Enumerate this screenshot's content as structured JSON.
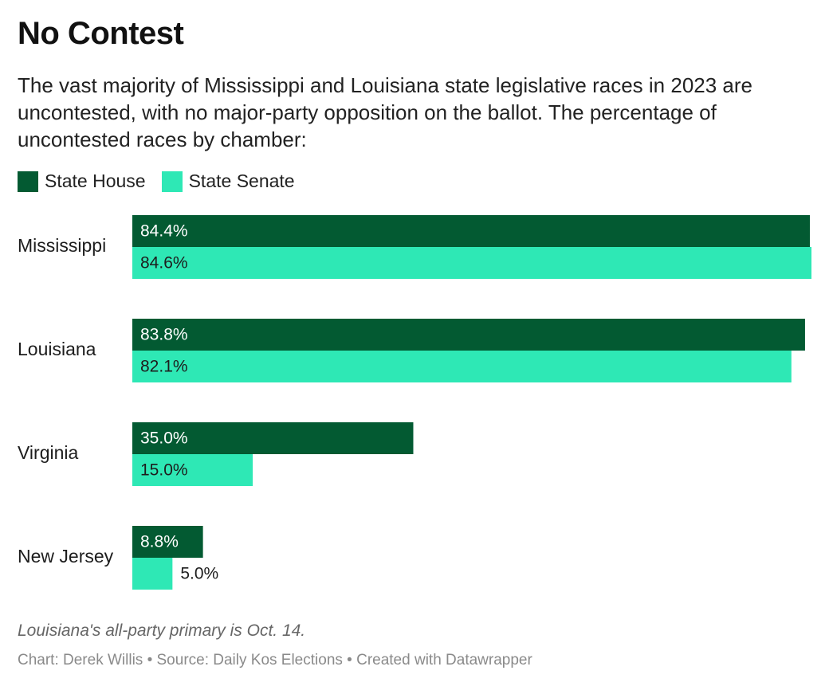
{
  "title": "No Contest",
  "subtitle": "The vast majority of Mississippi and Louisiana state legislative races in 2023 are uncontested, with no major-party opposition on the ballot. The percentage of uncontested races by chamber:",
  "legend": [
    {
      "label": "State House",
      "color": "#035a32"
    },
    {
      "label": "State Senate",
      "color": "#2ee8b5"
    }
  ],
  "chart_data": {
    "type": "bar",
    "orientation": "horizontal",
    "categories": [
      "Mississippi",
      "Louisiana",
      "Virginia",
      "New Jersey"
    ],
    "series": [
      {
        "name": "State House",
        "color": "#035a32",
        "values": [
          84.4,
          83.8,
          35.0,
          8.8
        ],
        "labels": [
          "84.4%",
          "83.8%",
          "35.0%",
          "8.8%"
        ]
      },
      {
        "name": "State Senate",
        "color": "#2ee8b5",
        "values": [
          84.6,
          82.1,
          15.0,
          5.0
        ],
        "labels": [
          "84.6%",
          "82.1%",
          "15.0%",
          "5.0%"
        ]
      }
    ],
    "xlim": [
      0,
      84.6
    ],
    "grid": false,
    "legend_position": "top-left"
  },
  "note": "Louisiana's all-party primary is Oct. 14.",
  "credits": "Chart: Derek Willis • Source: Daily Kos Elections • Created with Datawrapper"
}
